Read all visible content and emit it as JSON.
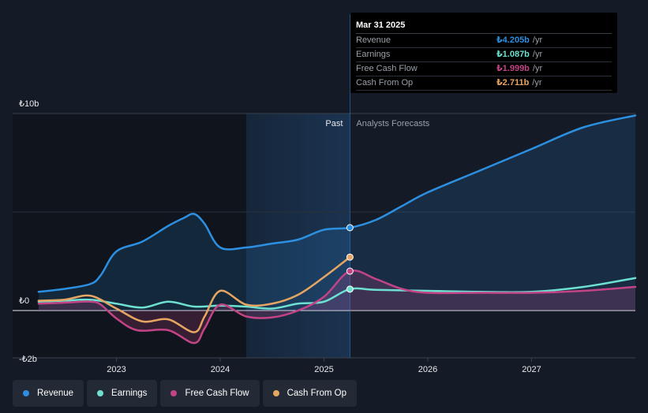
{
  "colors": {
    "revenue": "#2d8fe0",
    "earnings": "#6ee0d2",
    "free_cash_flow": "#c24486",
    "cash_from_op": "#e6a562",
    "background": "#151b26"
  },
  "tooltip": {
    "date": "Mar 31 2025",
    "rows": [
      {
        "label": "Revenue",
        "value": "₺4.205b",
        "unit": "/yr",
        "color": "#2d8fe0"
      },
      {
        "label": "Earnings",
        "value": "₺1.087b",
        "unit": "/yr",
        "color": "#6ee0d2"
      },
      {
        "label": "Free Cash Flow",
        "value": "₺1.999b",
        "unit": "/yr",
        "color": "#c24486"
      },
      {
        "label": "Cash From Op",
        "value": "₺2.711b",
        "unit": "/yr",
        "color": "#e6a562"
      }
    ]
  },
  "legend": [
    {
      "label": "Revenue",
      "color": "#2d8fe0",
      "icon": "revenue-dot-icon"
    },
    {
      "label": "Earnings",
      "color": "#6ee0d2",
      "icon": "earnings-dot-icon"
    },
    {
      "label": "Free Cash Flow",
      "color": "#c24486",
      "icon": "free-cash-flow-dot-icon"
    },
    {
      "label": "Cash From Op",
      "color": "#e6a562",
      "icon": "cash-from-op-dot-icon"
    }
  ],
  "chart_data": {
    "type": "line",
    "currency": "₺",
    "unit": "billions",
    "ylim": [
      -2,
      10
    ],
    "xlim": [
      2022.0,
      2028.0
    ],
    "y_tick_labels": [
      {
        "label": "₺10b",
        "value": 10
      },
      {
        "label": "₺0",
        "value": 0
      },
      {
        "label": "-₺2b",
        "value": -2
      }
    ],
    "x_tick_labels": [
      {
        "label": "2023",
        "value": 2023.0
      },
      {
        "label": "2024",
        "value": 2024.0
      },
      {
        "label": "2025",
        "value": 2025.0
      },
      {
        "label": "2026",
        "value": 2026.0
      },
      {
        "label": "2027",
        "value": 2027.0
      }
    ],
    "past_label": "Past",
    "forecast_label": "Analysts Forecasts",
    "divider_x": 2025.25,
    "highlight_start": 2024.25,
    "series": [
      {
        "name": "Revenue",
        "key": "revenue",
        "fill": true,
        "points": [
          [
            2022.25,
            0.95
          ],
          [
            2022.5,
            1.1
          ],
          [
            2022.75,
            1.35
          ],
          [
            2022.85,
            1.8
          ],
          [
            2023.0,
            3.0
          ],
          [
            2023.25,
            3.5
          ],
          [
            2023.5,
            4.3
          ],
          [
            2023.65,
            4.7
          ],
          [
            2023.75,
            4.9
          ],
          [
            2023.85,
            4.4
          ],
          [
            2024.0,
            3.2
          ],
          [
            2024.25,
            3.2
          ],
          [
            2024.5,
            3.4
          ],
          [
            2024.75,
            3.6
          ],
          [
            2025.0,
            4.1
          ],
          [
            2025.25,
            4.205
          ],
          [
            2025.5,
            4.6
          ],
          [
            2025.75,
            5.3
          ],
          [
            2026.0,
            6.0
          ],
          [
            2026.5,
            7.1
          ],
          [
            2027.0,
            8.2
          ],
          [
            2027.5,
            9.3
          ],
          [
            2028.0,
            9.9
          ]
        ]
      },
      {
        "name": "Earnings",
        "key": "earnings",
        "fill": false,
        "points": [
          [
            2022.25,
            0.45
          ],
          [
            2022.5,
            0.5
          ],
          [
            2022.75,
            0.55
          ],
          [
            2023.0,
            0.35
          ],
          [
            2023.25,
            0.15
          ],
          [
            2023.5,
            0.45
          ],
          [
            2023.75,
            0.2
          ],
          [
            2024.0,
            0.25
          ],
          [
            2024.25,
            0.2
          ],
          [
            2024.5,
            0.1
          ],
          [
            2024.75,
            0.35
          ],
          [
            2025.0,
            0.45
          ],
          [
            2025.25,
            1.087
          ],
          [
            2025.5,
            1.05
          ],
          [
            2026.0,
            1.0
          ],
          [
            2026.5,
            0.95
          ],
          [
            2027.0,
            0.95
          ],
          [
            2027.5,
            1.2
          ],
          [
            2028.0,
            1.65
          ]
        ]
      },
      {
        "name": "Free Cash Flow",
        "key": "free_cash_flow",
        "fill": true,
        "points": [
          [
            2022.25,
            0.35
          ],
          [
            2022.5,
            0.4
          ],
          [
            2022.75,
            0.45
          ],
          [
            2022.85,
            0.3
          ],
          [
            2023.0,
            -0.4
          ],
          [
            2023.2,
            -1.0
          ],
          [
            2023.5,
            -1.0
          ],
          [
            2023.75,
            -1.65
          ],
          [
            2023.85,
            -0.9
          ],
          [
            2024.0,
            0.3
          ],
          [
            2024.25,
            -0.3
          ],
          [
            2024.5,
            -0.35
          ],
          [
            2024.75,
            0.0
          ],
          [
            2025.0,
            0.7
          ],
          [
            2025.25,
            1.999
          ],
          [
            2025.5,
            1.6
          ],
          [
            2025.75,
            1.1
          ],
          [
            2026.0,
            0.9
          ],
          [
            2026.5,
            0.9
          ],
          [
            2027.0,
            0.9
          ],
          [
            2027.5,
            1.0
          ],
          [
            2028.0,
            1.2
          ]
        ]
      },
      {
        "name": "Cash From Op",
        "key": "cash_from_op",
        "fill": false,
        "points": [
          [
            2022.25,
            0.5
          ],
          [
            2022.5,
            0.55
          ],
          [
            2022.75,
            0.75
          ],
          [
            2023.0,
            0.1
          ],
          [
            2023.25,
            -0.55
          ],
          [
            2023.5,
            -0.45
          ],
          [
            2023.75,
            -1.1
          ],
          [
            2023.85,
            -0.3
          ],
          [
            2024.0,
            1.0
          ],
          [
            2024.25,
            0.3
          ],
          [
            2024.5,
            0.35
          ],
          [
            2024.75,
            0.8
          ],
          [
            2025.0,
            1.7
          ],
          [
            2025.25,
            2.711
          ]
        ]
      }
    ]
  }
}
